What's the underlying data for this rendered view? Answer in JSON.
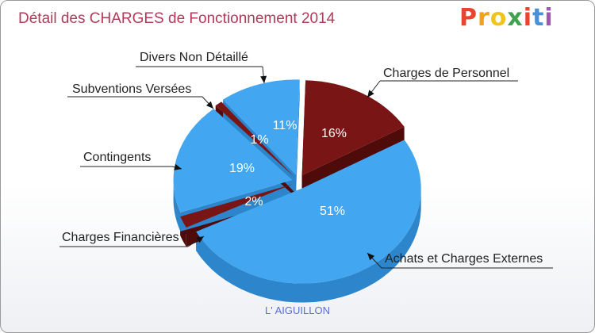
{
  "title": "Détail des CHARGES de Fonctionnement 2014",
  "subtitle": "L' AIGUILLON",
  "logo": {
    "text": "Proxiti",
    "colors": [
      "#e8452c",
      "#f0a21c",
      "#f0c419",
      "#3fa34d",
      "#e8452c",
      "#4a90d9",
      "#9b59b6"
    ]
  },
  "colors": {
    "light": "#42a7f0",
    "light_side": "#2d86cc",
    "dark": "#7a1515",
    "dark_side": "#4f0a0a"
  },
  "chart_data": {
    "type": "pie",
    "slices": [
      {
        "name": "Charges de Personnel",
        "value": 16,
        "label": "16%",
        "color": "dark"
      },
      {
        "name": "Achats et Charges Externes",
        "value": 51,
        "label": "51%",
        "color": "light"
      },
      {
        "name": "Charges Financières",
        "value": 2,
        "label": "2%",
        "color": "dark"
      },
      {
        "name": "Contingents",
        "value": 19,
        "label": "19%",
        "color": "light"
      },
      {
        "name": "Subventions Versées",
        "value": 1,
        "label": "1%",
        "color": "dark"
      },
      {
        "name": "Divers Non Détaillé",
        "value": 11,
        "label": "11%",
        "color": "light"
      }
    ]
  }
}
